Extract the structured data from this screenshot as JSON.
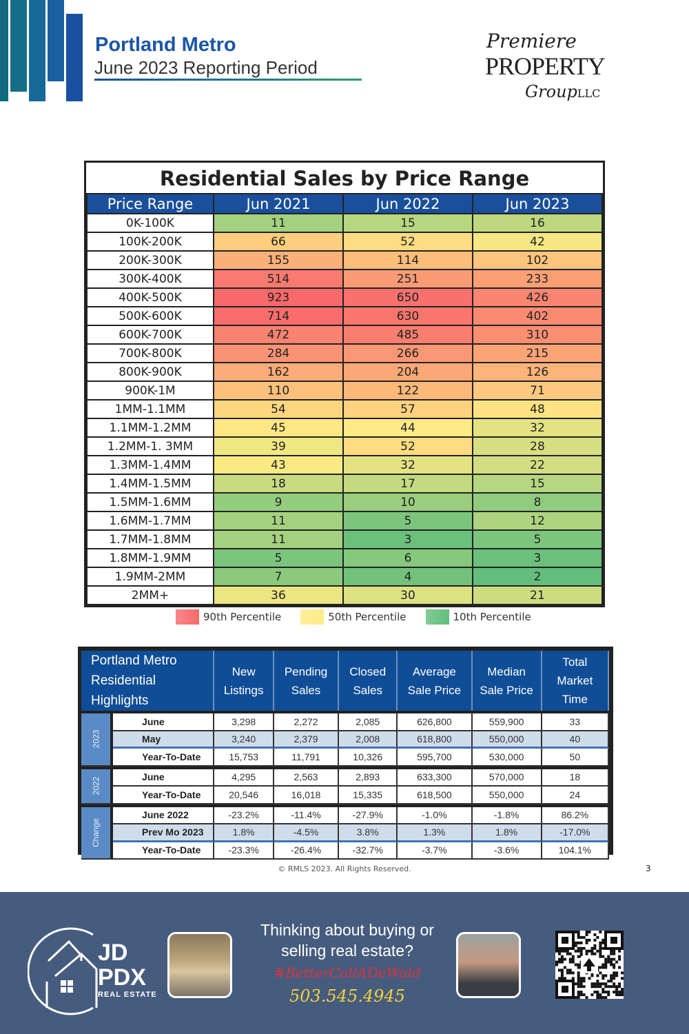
{
  "header": {
    "title": "Portland Metro",
    "subtitle": "June 2023 Reporting Period"
  },
  "brand": {
    "line1": "Premiere",
    "line2": "PROPERTY",
    "line3": "Group",
    "suffix": "LLC"
  },
  "heatmap": {
    "title": "Residential Sales by Price Range",
    "columns": [
      "Price Range",
      "Jun 2021",
      "Jun 2022",
      "Jun 2023"
    ],
    "rows": [
      [
        "0K-100K",
        11,
        15,
        16
      ],
      [
        "100K-200K",
        66,
        52,
        42
      ],
      [
        "200K-300K",
        155,
        114,
        102
      ],
      [
        "300K-400K",
        514,
        251,
        233
      ],
      [
        "400K-500K",
        923,
        650,
        426
      ],
      [
        "500K-600K",
        714,
        630,
        402
      ],
      [
        "600K-700K",
        472,
        485,
        310
      ],
      [
        "700K-800K",
        284,
        266,
        215
      ],
      [
        "800K-900K",
        162,
        204,
        126
      ],
      [
        "900K-1M",
        110,
        122,
        71
      ],
      [
        "1MM-1.1MM",
        54,
        57,
        48
      ],
      [
        "1.1MM-1.2MM",
        45,
        44,
        32
      ],
      [
        "1.2MM-1. 3MM",
        39,
        52,
        28
      ],
      [
        "1.3MM-1.4MM",
        43,
        32,
        22
      ],
      [
        "1.4MM-1.5MM",
        18,
        17,
        15
      ],
      [
        "1.5MM-1.6MM",
        9,
        10,
        8
      ],
      [
        "1.6MM-1.7MM",
        11,
        5,
        12
      ],
      [
        "1.7MM-1.8MM",
        11,
        3,
        5
      ],
      [
        "1.8MM-1.9MM",
        5,
        6,
        3
      ],
      [
        "1.9MM-2MM",
        7,
        4,
        2
      ],
      [
        "2MM+",
        36,
        30,
        21
      ]
    ],
    "legend": [
      {
        "label": "90th Percentile",
        "color": "#f8696b"
      },
      {
        "label": "50th Percentile",
        "color": "#ffeb84"
      },
      {
        "label": "10th Percentile",
        "color": "#63be7b"
      }
    ]
  },
  "highlights": {
    "title": "Portland Metro Residential Highlights",
    "columns": [
      "New Listings",
      "Pending Sales",
      "Closed Sales",
      "Average Sale Price",
      "Median Sale Price",
      "Total Market Time"
    ],
    "groups": [
      {
        "name": "2023",
        "rows": [
          {
            "label": "June",
            "values": [
              "3,298",
              "2,272",
              "2,085",
              "626,800",
              "559,900",
              "33"
            ]
          },
          {
            "label": "May",
            "values": [
              "3,240",
              "2,379",
              "2,008",
              "618,800",
              "550,000",
              "40"
            ]
          },
          {
            "label": "Year-To-Date",
            "values": [
              "15,753",
              "11,791",
              "10,326",
              "595,700",
              "530,000",
              "50"
            ]
          }
        ]
      },
      {
        "name": "2022",
        "rows": [
          {
            "label": "June",
            "values": [
              "4,295",
              "2,563",
              "2,893",
              "633,300",
              "570,000",
              "18"
            ]
          },
          {
            "label": "Year-To-Date",
            "values": [
              "20,546",
              "16,018",
              "15,335",
              "618,500",
              "550,000",
              "24"
            ]
          }
        ]
      },
      {
        "name": "Change",
        "rows": [
          {
            "label": "June 2022",
            "values": [
              "-23.2%",
              "-11.4%",
              "-27.9%",
              "-1.0%",
              "-1.8%",
              "86.2%"
            ]
          },
          {
            "label": "Prev Mo 2023",
            "values": [
              "1.8%",
              "-4.5%",
              "3.8%",
              "1.3%",
              "1.8%",
              "-17.0%"
            ]
          },
          {
            "label": "Year-To-Date",
            "values": [
              "-23.3%",
              "-26.4%",
              "-32.7%",
              "-3.7%",
              "-3.6%",
              "104.1%"
            ]
          }
        ]
      }
    ]
  },
  "copyright": "© RMLS 2023. All Rights Reserved.",
  "page_number": "3",
  "footer": {
    "logo_line1": "JD",
    "logo_line2": "PDX",
    "logo_line3": "REAL ESTATE",
    "tagline": "Thinking about buying or selling real estate?",
    "hashtag": "#BetterCallADeWald",
    "phone": "503.545.4945"
  }
}
